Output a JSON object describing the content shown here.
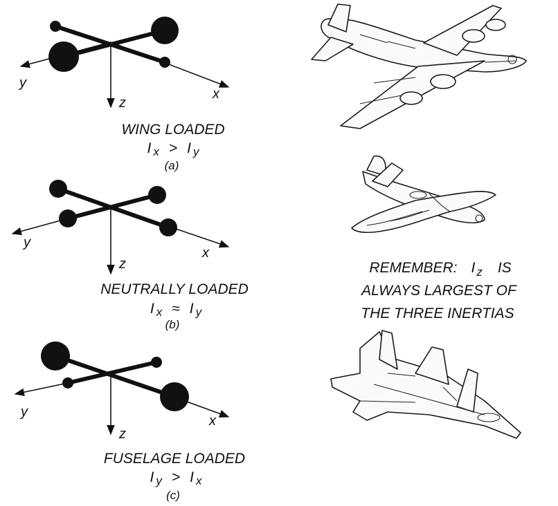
{
  "panels": [
    {
      "axes": {
        "x": "x",
        "y": "y",
        "z": "z"
      },
      "caption": "WING LOADED",
      "relation": {
        "left": "I",
        "left_sub": "x",
        "op": ">",
        "right": "I",
        "right_sub": "y"
      },
      "tag": "(a)"
    },
    {
      "axes": {
        "x": "x",
        "y": "y",
        "z": "z"
      },
      "caption": "NEUTRALLY LOADED",
      "relation": {
        "left": "I",
        "left_sub": "x",
        "op": "≈",
        "right": "I",
        "right_sub": "y"
      },
      "tag": "(b)"
    },
    {
      "axes": {
        "x": "x",
        "y": "y",
        "z": "z"
      },
      "caption": "FUSELAGE LOADED",
      "relation": {
        "left": "I",
        "left_sub": "y",
        "op": ">",
        "right": "I",
        "right_sub": "x"
      },
      "tag": "(c)"
    }
  ],
  "note": {
    "line1_prefix": "REMEMBER:",
    "line1_var": "I",
    "line1_sub": "z",
    "line1_suffix": "IS",
    "line2": "ALWAYS LARGEST OF",
    "line3": "THE THREE INERTIAS"
  },
  "aircraft": [
    {
      "icon": "bomber-aircraft-icon"
    },
    {
      "icon": "fighter-aircraft-icon"
    },
    {
      "icon": "jet-fighter-icon"
    }
  ],
  "colors": {
    "ink": "#111111",
    "background": "#ffffff"
  }
}
